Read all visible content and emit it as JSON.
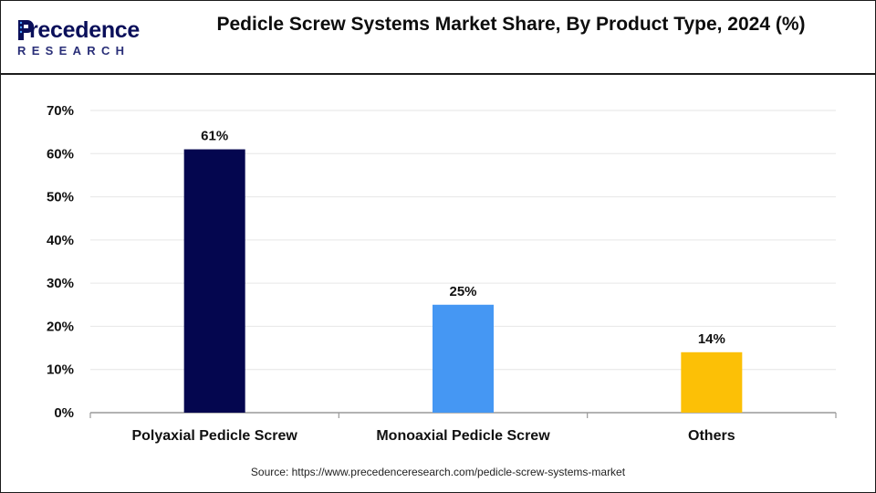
{
  "logo": {
    "brand_initial": "P",
    "brand_rest": "recedence",
    "brand_sub": "RESEARCH"
  },
  "title": "Pedicle Screw Systems Market Share, By Product Type, 2024 (%)",
  "source": "Source: https://www.precedenceresearch.com/pedicle-screw-systems-market",
  "colors": {
    "navy": "#04064f",
    "blue": "#4597f3",
    "gold": "#fcc006",
    "grid": "#e6e6e6",
    "axis": "#9a9a9a"
  },
  "chart_data": {
    "type": "bar",
    "categories": [
      "Polyaxial Pedicle Screw",
      "Monoaxial Pedicle Screw",
      "Others"
    ],
    "values": [
      61,
      25,
      14
    ],
    "data_labels": [
      "61%",
      "25%",
      "14%"
    ],
    "bar_colors": [
      "#04064f",
      "#4597f3",
      "#fcc006"
    ],
    "yticks": [
      "0%",
      "10%",
      "20%",
      "30%",
      "40%",
      "50%",
      "60%",
      "70%"
    ],
    "ylim": [
      0,
      70
    ],
    "xlabel": "",
    "ylabel": "",
    "grid": true,
    "legend": "none"
  }
}
